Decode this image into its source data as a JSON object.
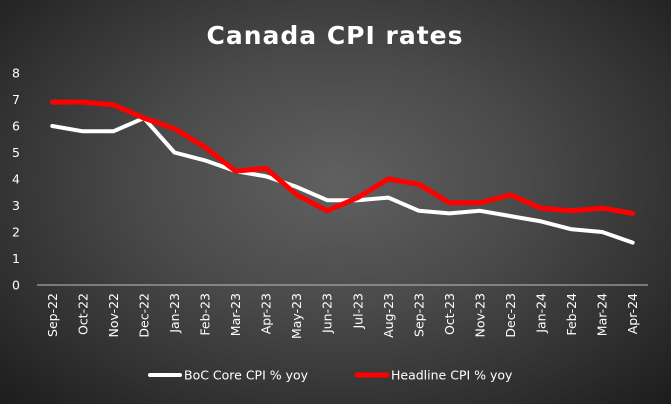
{
  "chart_data": {
    "type": "line",
    "title": "Canada CPI rates",
    "xlabel": "",
    "ylabel": "",
    "ylim": [
      0,
      8
    ],
    "yticks": [
      0,
      1,
      2,
      3,
      4,
      5,
      6,
      7,
      8
    ],
    "categories": [
      "Sep-22",
      "Oct-22",
      "Nov-22",
      "Dec-22",
      "Jan-23",
      "Feb-23",
      "Mar-23",
      "Apr-23",
      "May-23",
      "Jun-23",
      "Jul-23",
      "Aug-23",
      "Sep-23",
      "Oct-23",
      "Nov-23",
      "Dec-23",
      "Jan-24",
      "Feb-24",
      "Mar-24",
      "Apr-24"
    ],
    "series": [
      {
        "name": "BoC Core CPI % yoy",
        "color": "#ffffff",
        "values": [
          6.0,
          5.8,
          5.8,
          6.3,
          5.0,
          4.7,
          4.3,
          4.1,
          3.7,
          3.2,
          3.2,
          3.3,
          2.8,
          2.7,
          2.8,
          2.6,
          2.4,
          2.1,
          2.0,
          1.6
        ]
      },
      {
        "name": "Headline CPI % yoy",
        "color": "#ff0000",
        "values": [
          6.9,
          6.9,
          6.8,
          6.3,
          5.9,
          5.2,
          4.3,
          4.4,
          3.4,
          2.8,
          3.3,
          4.0,
          3.8,
          3.1,
          3.1,
          3.4,
          2.9,
          2.8,
          2.9,
          2.7
        ]
      }
    ],
    "legend_position": "bottom",
    "grid": false
  }
}
